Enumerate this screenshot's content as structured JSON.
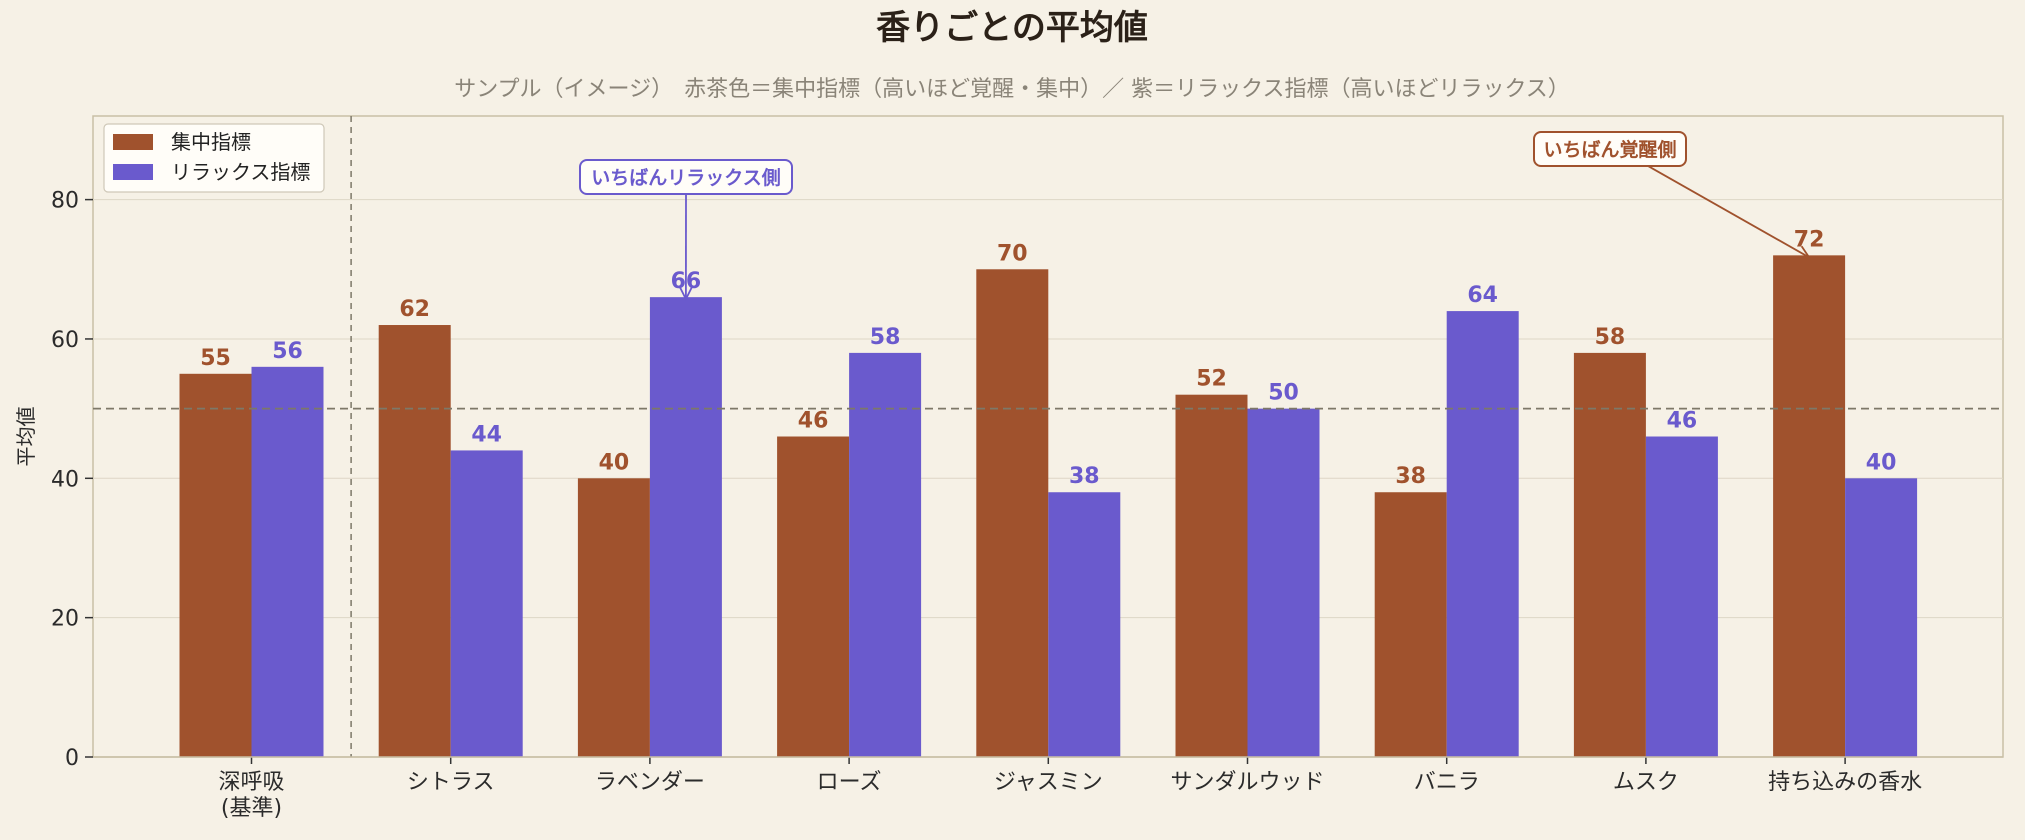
{
  "chart_data": {
    "type": "bar",
    "title": "香りごとの平均値",
    "subtitle": "サンプル（イメージ）　赤茶色＝集中指標（高いほど覚醒・集中）／ 紫＝リラックス指標（高いほどリラックス）",
    "ylabel": "平均値",
    "xlabel": "",
    "ylim": [
      0,
      92
    ],
    "yticks": [
      0,
      20,
      40,
      60,
      80
    ],
    "grid": true,
    "legend_position": "top-left",
    "categories": [
      [
        "深呼吸",
        "(基準)"
      ],
      [
        "シトラス"
      ],
      [
        "ラベンダー"
      ],
      [
        "ローズ"
      ],
      [
        "ジャスミン"
      ],
      [
        "サンダルウッド"
      ],
      [
        "バニラ"
      ],
      [
        "ムスク"
      ],
      [
        "持ち込みの香水"
      ]
    ],
    "series": [
      {
        "name": "集中指標",
        "color": "#a0522d",
        "values": [
          55,
          62,
          40,
          46,
          70,
          52,
          38,
          58,
          72
        ]
      },
      {
        "name": "リラックス指標",
        "color": "#6a5acd",
        "values": [
          56,
          44,
          66,
          58,
          38,
          50,
          64,
          46,
          40
        ]
      }
    ],
    "reference_line": {
      "y": 50,
      "style": "dashed"
    },
    "separator_after_category": 0,
    "annotations": [
      {
        "text": "いちばんリラックス側",
        "category_index": 2,
        "series_index": 1,
        "color": "#6a5acd"
      },
      {
        "text": "いちばん覚醒側",
        "category_index": 8,
        "series_index": 0,
        "color": "#a0522d"
      }
    ]
  }
}
